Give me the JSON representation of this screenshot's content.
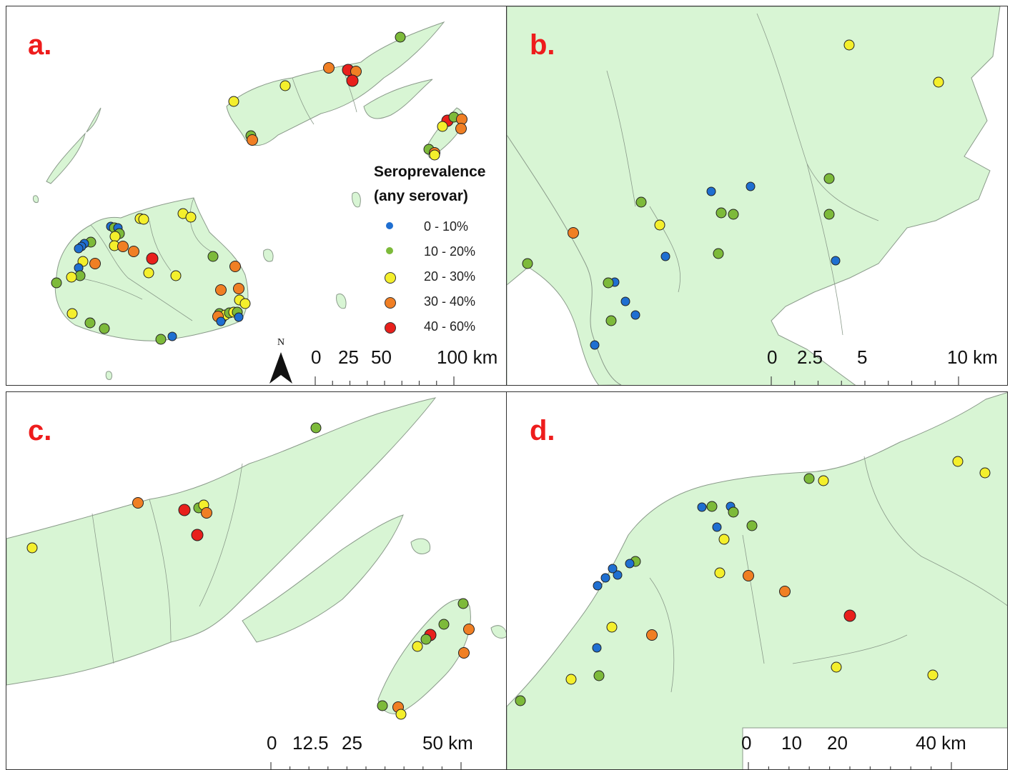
{
  "colors": {
    "land": "#d8f5d4",
    "outline": "#8a9a8a",
    "class_0_10": "#1f6fd1",
    "class_10_20": "#7dba3a",
    "class_20_30": "#f4ef2c",
    "class_30_40": "#f07f24",
    "class_40_60": "#e8201c",
    "label_red": "#ee1c1c"
  },
  "legend": {
    "title_line1": "Seroprevalence",
    "title_line2": "(any serovar)",
    "classes": [
      {
        "label": "0 - 10%",
        "color": "#1f6fd1"
      },
      {
        "label": "10 - 20%",
        "color": "#7dba3a"
      },
      {
        "label": "20 - 30%",
        "color": "#f4ef2c"
      },
      {
        "label": "30 - 40%",
        "color": "#f07f24"
      },
      {
        "label": "40 - 60%",
        "color": "#e8201c"
      }
    ]
  },
  "north_arrow": {
    "label": "N",
    "icon": "north-arrow-icon"
  },
  "panels": {
    "a": {
      "label": "a.",
      "scale": {
        "ticks": [
          "0",
          "25",
          "50",
          "100 km"
        ]
      },
      "sites": [
        [
          551,
          43,
          1
        ],
        [
          451,
          86,
          3
        ],
        [
          478,
          89,
          4
        ],
        [
          489,
          91,
          3
        ],
        [
          484,
          104,
          4
        ],
        [
          390,
          111,
          2
        ],
        [
          318,
          133,
          2
        ],
        [
          342,
          181,
          1
        ],
        [
          344,
          187,
          3
        ],
        [
          617,
          160,
          4
        ],
        [
          626,
          155,
          1
        ],
        [
          637,
          158,
          3
        ],
        [
          610,
          168,
          2
        ],
        [
          636,
          171,
          3
        ],
        [
          591,
          200,
          1
        ],
        [
          599,
          205,
          3
        ],
        [
          599,
          208,
          2
        ],
        [
          187,
          297,
          2
        ],
        [
          192,
          298,
          2
        ],
        [
          247,
          290,
          2
        ],
        [
          258,
          295,
          2
        ],
        [
          146,
          308,
          0
        ],
        [
          151,
          310,
          1
        ],
        [
          156,
          310,
          0
        ],
        [
          158,
          318,
          1
        ],
        [
          152,
          322,
          2
        ],
        [
          118,
          330,
          1
        ],
        [
          109,
          332,
          0
        ],
        [
          105,
          336,
          0
        ],
        [
          101,
          339,
          0
        ],
        [
          151,
          335,
          2
        ],
        [
          163,
          336,
          3
        ],
        [
          178,
          343,
          3
        ],
        [
          204,
          353,
          4
        ],
        [
          107,
          357,
          2
        ],
        [
          124,
          360,
          3
        ],
        [
          101,
          366,
          0
        ],
        [
          103,
          377,
          1
        ],
        [
          91,
          379,
          2
        ],
        [
          70,
          387,
          1
        ],
        [
          199,
          373,
          2
        ],
        [
          237,
          377,
          2
        ],
        [
          289,
          350,
          1
        ],
        [
          320,
          364,
          3
        ],
        [
          300,
          397,
          3
        ],
        [
          325,
          395,
          3
        ],
        [
          326,
          411,
          2
        ],
        [
          334,
          416,
          2
        ],
        [
          92,
          430,
          2
        ],
        [
          117,
          443,
          1
        ],
        [
          137,
          451,
          1
        ],
        [
          216,
          466,
          1
        ],
        [
          232,
          462,
          0
        ],
        [
          298,
          430,
          1
        ],
        [
          302,
          437,
          0
        ],
        [
          306,
          432,
          2
        ],
        [
          312,
          429,
          1
        ],
        [
          318,
          428,
          2
        ],
        [
          323,
          428,
          1
        ],
        [
          296,
          434,
          3
        ],
        [
          300,
          441,
          0
        ],
        [
          325,
          435,
          0
        ]
      ]
    },
    "b": {
      "label": "b.",
      "scale": {
        "ticks": [
          "0",
          "2.5",
          "5",
          "10 km"
        ]
      },
      "sites": [
        [
          479,
          54,
          2
        ],
        [
          604,
          106,
          2
        ],
        [
          451,
          241,
          1
        ],
        [
          451,
          291,
          1
        ],
        [
          460,
          356,
          0
        ],
        [
          341,
          252,
          0
        ],
        [
          286,
          259,
          0
        ],
        [
          188,
          274,
          1
        ],
        [
          300,
          289,
          1
        ],
        [
          317,
          291,
          1
        ],
        [
          214,
          306,
          2
        ],
        [
          93,
          317,
          3
        ],
        [
          296,
          346,
          1
        ],
        [
          222,
          350,
          0
        ],
        [
          29,
          360,
          1
        ],
        [
          151,
          386,
          0
        ],
        [
          142,
          387,
          1
        ],
        [
          166,
          413,
          0
        ],
        [
          180,
          432,
          0
        ],
        [
          146,
          440,
          1
        ],
        [
          123,
          474,
          0
        ]
      ]
    },
    "c": {
      "label": "c.",
      "scale": {
        "ticks": [
          "0",
          "12.5",
          "25",
          "50 km"
        ]
      },
      "sites": [
        [
          433,
          50,
          1
        ],
        [
          184,
          155,
          3
        ],
        [
          249,
          165,
          4
        ],
        [
          269,
          162,
          1
        ],
        [
          276,
          158,
          2
        ],
        [
          280,
          169,
          3
        ],
        [
          267,
          200,
          4
        ],
        [
          36,
          218,
          2
        ],
        [
          639,
          296,
          1
        ],
        [
          612,
          325,
          1
        ],
        [
          593,
          340,
          4
        ],
        [
          587,
          346,
          1
        ],
        [
          647,
          332,
          3
        ],
        [
          575,
          356,
          2
        ],
        [
          640,
          365,
          3
        ],
        [
          526,
          439,
          1
        ],
        [
          548,
          441,
          3
        ],
        [
          552,
          451,
          2
        ]
      ]
    },
    "d": {
      "label": "d.",
      "scale": {
        "ticks": [
          "0",
          "10",
          "20",
          "40 km"
        ]
      },
      "sites": [
        [
          1339,
          97,
          2
        ],
        [
          1377,
          113,
          2
        ],
        [
          1131,
          121,
          1
        ],
        [
          1151,
          124,
          2
        ],
        [
          981,
          161,
          0
        ],
        [
          995,
          160,
          1
        ],
        [
          1021,
          160,
          0
        ],
        [
          1025,
          168,
          1
        ],
        [
          1002,
          189,
          0
        ],
        [
          1051,
          187,
          1
        ],
        [
          1012,
          206,
          2
        ],
        [
          888,
          237,
          1
        ],
        [
          880,
          240,
          0
        ],
        [
          863,
          256,
          0
        ],
        [
          856,
          247,
          0
        ],
        [
          846,
          260,
          0
        ],
        [
          835,
          271,
          0
        ],
        [
          1006,
          253,
          2
        ],
        [
          1046,
          257,
          3
        ],
        [
          1097,
          279,
          3
        ],
        [
          1188,
          313,
          4
        ],
        [
          855,
          329,
          2
        ],
        [
          911,
          340,
          3
        ],
        [
          834,
          358,
          0
        ],
        [
          1169,
          385,
          2
        ],
        [
          1304,
          396,
          2
        ],
        [
          837,
          397,
          1
        ],
        [
          798,
          402,
          2
        ],
        [
          727,
          432,
          1
        ]
      ]
    }
  }
}
